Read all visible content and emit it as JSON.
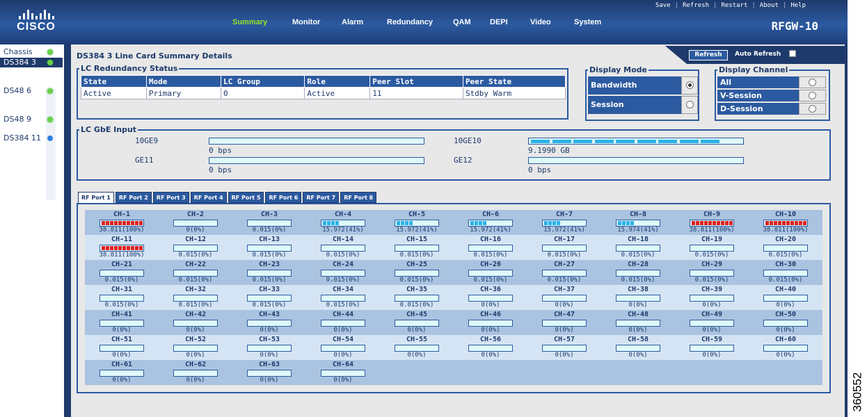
{
  "header": {
    "logo_text": "CISCO",
    "product": "RFGW-10",
    "util_nav": [
      "Save",
      "Refresh",
      "Restart",
      "About",
      "Help"
    ],
    "main_nav": [
      {
        "label": "Summary",
        "active": true
      },
      {
        "label": "Monitor",
        "active": false
      },
      {
        "label": "Alarm",
        "active": false
      },
      {
        "label": "Redundancy",
        "active": false
      },
      {
        "label": "QAM",
        "active": false
      },
      {
        "label": "DEPI",
        "active": false
      },
      {
        "label": "Video",
        "active": false
      },
      {
        "label": "System",
        "active": false
      }
    ]
  },
  "sidebar": {
    "items": [
      {
        "label": "Chassis",
        "status": "green",
        "selected": false
      },
      {
        "label": "DS384 3",
        "status": "green",
        "selected": true
      },
      {
        "label": "DS48 6",
        "status": "green",
        "selected": false
      },
      {
        "label": "DS48 9",
        "status": "green",
        "selected": false
      },
      {
        "label": "DS384 11",
        "status": "blue",
        "selected": false
      }
    ]
  },
  "main": {
    "title": "DS384 3 Line Card Summary Details",
    "refresh_label": "Refresh",
    "auto_refresh_label": "Auto Refresh",
    "redundancy": {
      "legend": "LC Redundancy Status",
      "columns": [
        "State",
        "Mode",
        "LC Group",
        "Role",
        "Peer Slot",
        "Peer State"
      ],
      "row": [
        "Active",
        "Primary",
        "0",
        "Active",
        "11",
        "Stdby Warm"
      ]
    },
    "display_mode": {
      "legend": "Display Mode",
      "options": [
        {
          "label": "Bandwidth",
          "selected": true
        },
        {
          "label": "Session",
          "selected": false
        }
      ]
    },
    "display_channel": {
      "legend": "Display Channel",
      "options": [
        {
          "label": "All",
          "selected": true
        },
        {
          "label": "V-Session",
          "selected": false
        },
        {
          "label": "D-Session",
          "selected": false
        }
      ]
    },
    "gbe": {
      "legend": "LC GbE Input",
      "ports": [
        {
          "name": "10GE9",
          "value": "0 bps",
          "segments": 0
        },
        {
          "name": "10GE10",
          "value": "9.1990 GB",
          "segments": 9
        },
        {
          "name": "GE11",
          "value": "0 bps",
          "segments": 0
        },
        {
          "name": "GE12",
          "value": "0 bps",
          "segments": 0
        }
      ]
    },
    "rf_tabs": [
      "RF Port 1",
      "RF Port 2",
      "RF Port 3",
      "RF Port 4",
      "RF Port 5",
      "RF Port 6",
      "RF Port 7",
      "RF Port 8"
    ],
    "active_tab": 0,
    "channels": [
      {
        "name": "CH-1",
        "value": "38.811(100%)",
        "level": 10,
        "color": "#e02020"
      },
      {
        "name": "CH-2",
        "value": "0(0%)",
        "level": 0,
        "color": "#29b2ea"
      },
      {
        "name": "CH-3",
        "value": "0.015(0%)",
        "level": 0,
        "color": "#29b2ea"
      },
      {
        "name": "CH-4",
        "value": "15.972(41%)",
        "level": 4,
        "color": "#29b2ea"
      },
      {
        "name": "CH-5",
        "value": "15.972(41%)",
        "level": 4,
        "color": "#29b2ea"
      },
      {
        "name": "CH-6",
        "value": "15.972(41%)",
        "level": 4,
        "color": "#29b2ea"
      },
      {
        "name": "CH-7",
        "value": "15.972(41%)",
        "level": 4,
        "color": "#29b2ea"
      },
      {
        "name": "CH-8",
        "value": "15.974(41%)",
        "level": 4,
        "color": "#29b2ea"
      },
      {
        "name": "CH-9",
        "value": "38.811(100%)",
        "level": 10,
        "color": "#e02020"
      },
      {
        "name": "CH-10",
        "value": "38.811(100%)",
        "level": 10,
        "color": "#e02020"
      },
      {
        "name": "CH-11",
        "value": "38.811(100%)",
        "level": 10,
        "color": "#e02020"
      },
      {
        "name": "CH-12",
        "value": "0.015(0%)",
        "level": 0,
        "color": "#29b2ea"
      },
      {
        "name": "CH-13",
        "value": "0.015(0%)",
        "level": 0,
        "color": "#29b2ea"
      },
      {
        "name": "CH-14",
        "value": "0.015(0%)",
        "level": 0,
        "color": "#29b2ea"
      },
      {
        "name": "CH-15",
        "value": "0.015(0%)",
        "level": 0,
        "color": "#29b2ea"
      },
      {
        "name": "CH-16",
        "value": "0.015(0%)",
        "level": 0,
        "color": "#29b2ea"
      },
      {
        "name": "CH-17",
        "value": "0.015(0%)",
        "level": 0,
        "color": "#29b2ea"
      },
      {
        "name": "CH-18",
        "value": "0.015(0%)",
        "level": 0,
        "color": "#29b2ea"
      },
      {
        "name": "CH-19",
        "value": "0.015(0%)",
        "level": 0,
        "color": "#29b2ea"
      },
      {
        "name": "CH-20",
        "value": "0.015(0%)",
        "level": 0,
        "color": "#29b2ea"
      },
      {
        "name": "CH-21",
        "value": "0.015(0%)",
        "level": 0,
        "color": "#29b2ea"
      },
      {
        "name": "CH-22",
        "value": "0.015(0%)",
        "level": 0,
        "color": "#29b2ea"
      },
      {
        "name": "CH-23",
        "value": "0.015(0%)",
        "level": 0,
        "color": "#29b2ea"
      },
      {
        "name": "CH-24",
        "value": "0.015(0%)",
        "level": 0,
        "color": "#29b2ea"
      },
      {
        "name": "CH-25",
        "value": "0.015(0%)",
        "level": 0,
        "color": "#29b2ea"
      },
      {
        "name": "CH-26",
        "value": "0.015(0%)",
        "level": 0,
        "color": "#29b2ea"
      },
      {
        "name": "CH-27",
        "value": "0.015(0%)",
        "level": 0,
        "color": "#29b2ea"
      },
      {
        "name": "CH-28",
        "value": "0.015(0%)",
        "level": 0,
        "color": "#29b2ea"
      },
      {
        "name": "CH-29",
        "value": "0.015(0%)",
        "level": 0,
        "color": "#29b2ea"
      },
      {
        "name": "CH-30",
        "value": "0.015(0%)",
        "level": 0,
        "color": "#29b2ea"
      },
      {
        "name": "CH-31",
        "value": "0.015(0%)",
        "level": 0,
        "color": "#29b2ea"
      },
      {
        "name": "CH-32",
        "value": "0.015(0%)",
        "level": 0,
        "color": "#29b2ea"
      },
      {
        "name": "CH-33",
        "value": "0.015(0%)",
        "level": 0,
        "color": "#29b2ea"
      },
      {
        "name": "CH-34",
        "value": "0.015(0%)",
        "level": 0,
        "color": "#29b2ea"
      },
      {
        "name": "CH-35",
        "value": "0.015(0%)",
        "level": 0,
        "color": "#29b2ea"
      },
      {
        "name": "CH-36",
        "value": "0(0%)",
        "level": 0,
        "color": "#29b2ea"
      },
      {
        "name": "CH-37",
        "value": "0(0%)",
        "level": 0,
        "color": "#29b2ea"
      },
      {
        "name": "CH-38",
        "value": "0(0%)",
        "level": 0,
        "color": "#29b2ea"
      },
      {
        "name": "CH-39",
        "value": "0(0%)",
        "level": 0,
        "color": "#29b2ea"
      },
      {
        "name": "CH-40",
        "value": "0(0%)",
        "level": 0,
        "color": "#29b2ea"
      },
      {
        "name": "CH-41",
        "value": "0(0%)",
        "level": 0,
        "color": "#29b2ea"
      },
      {
        "name": "CH-42",
        "value": "0(0%)",
        "level": 0,
        "color": "#29b2ea"
      },
      {
        "name": "CH-43",
        "value": "0(0%)",
        "level": 0,
        "color": "#29b2ea"
      },
      {
        "name": "CH-44",
        "value": "0(0%)",
        "level": 0,
        "color": "#29b2ea"
      },
      {
        "name": "CH-45",
        "value": "0(0%)",
        "level": 0,
        "color": "#29b2ea"
      },
      {
        "name": "CH-46",
        "value": "0(0%)",
        "level": 0,
        "color": "#29b2ea"
      },
      {
        "name": "CH-47",
        "value": "0(0%)",
        "level": 0,
        "color": "#29b2ea"
      },
      {
        "name": "CH-48",
        "value": "0(0%)",
        "level": 0,
        "color": "#29b2ea"
      },
      {
        "name": "CH-49",
        "value": "0(0%)",
        "level": 0,
        "color": "#29b2ea"
      },
      {
        "name": "CH-50",
        "value": "0(0%)",
        "level": 0,
        "color": "#29b2ea"
      },
      {
        "name": "CH-51",
        "value": "0(0%)",
        "level": 0,
        "color": "#29b2ea"
      },
      {
        "name": "CH-52",
        "value": "0(0%)",
        "level": 0,
        "color": "#29b2ea"
      },
      {
        "name": "CH-53",
        "value": "0(0%)",
        "level": 0,
        "color": "#29b2ea"
      },
      {
        "name": "CH-54",
        "value": "0(0%)",
        "level": 0,
        "color": "#29b2ea"
      },
      {
        "name": "CH-55",
        "value": "0(0%)",
        "level": 0,
        "color": "#29b2ea"
      },
      {
        "name": "CH-56",
        "value": "0(0%)",
        "level": 0,
        "color": "#29b2ea"
      },
      {
        "name": "CH-57",
        "value": "0(0%)",
        "level": 0,
        "color": "#29b2ea"
      },
      {
        "name": "CH-58",
        "value": "0(0%)",
        "level": 0,
        "color": "#29b2ea"
      },
      {
        "name": "CH-59",
        "value": "0(0%)",
        "level": 0,
        "color": "#29b2ea"
      },
      {
        "name": "CH-60",
        "value": "0(0%)",
        "level": 0,
        "color": "#29b2ea"
      },
      {
        "name": "CH-61",
        "value": "0(0%)",
        "level": 0,
        "color": "#29b2ea"
      },
      {
        "name": "CH-62",
        "value": "0(0%)",
        "level": 0,
        "color": "#29b2ea"
      },
      {
        "name": "CH-63",
        "value": "0(0%)",
        "level": 0,
        "color": "#29b2ea"
      },
      {
        "name": "CH-64",
        "value": "0(0%)",
        "level": 0,
        "color": "#29b2ea"
      }
    ]
  },
  "figure_id": "360552"
}
